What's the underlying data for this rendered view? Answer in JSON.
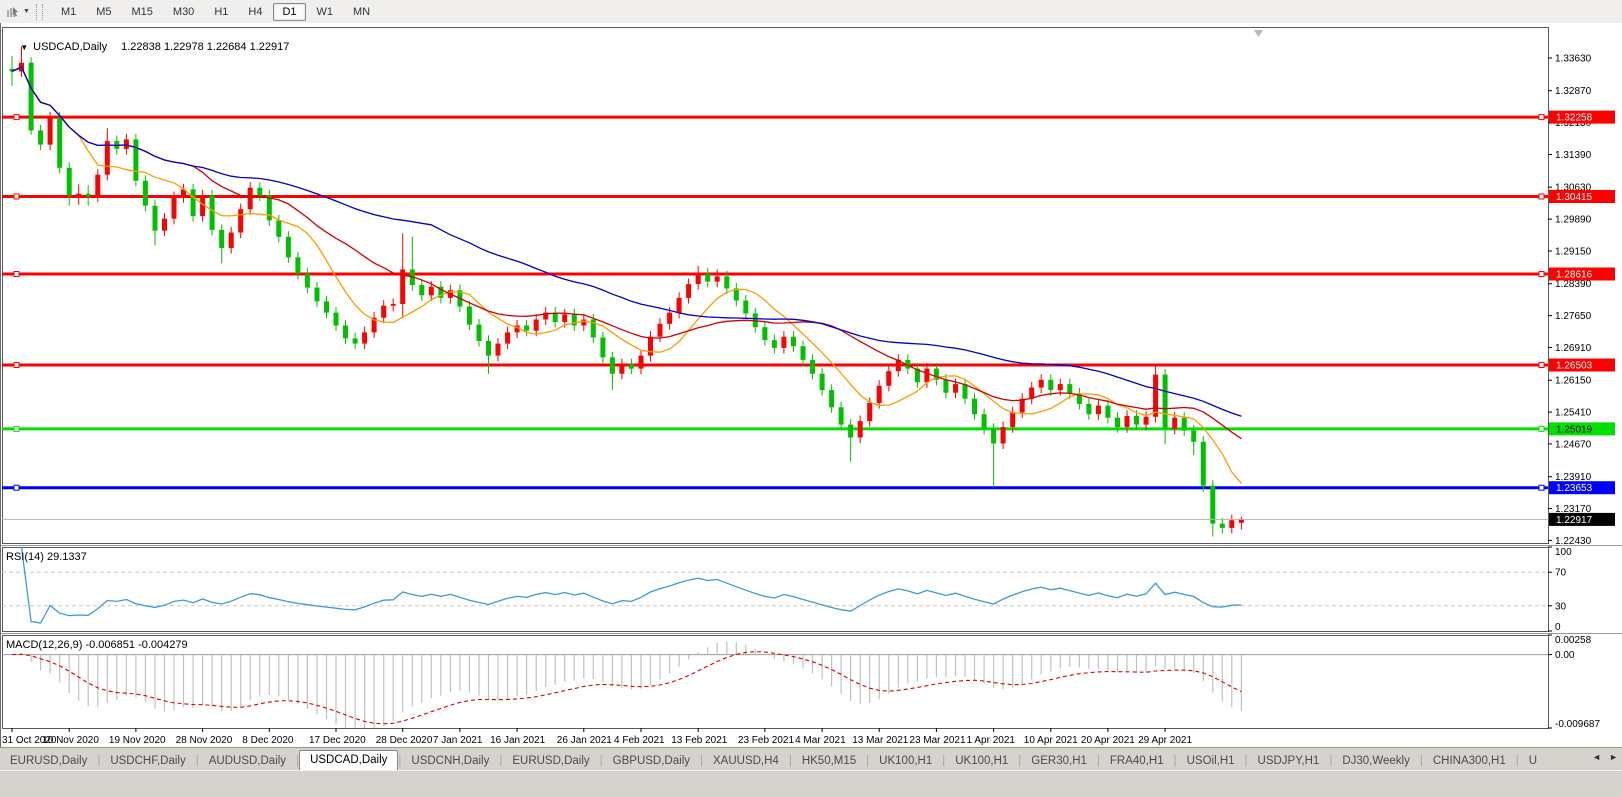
{
  "toolbar": {
    "tool_icon": "chart-cursor-icon",
    "dropdown_caret": "▼",
    "timeframes": [
      {
        "label": "M1",
        "active": false
      },
      {
        "label": "M5",
        "active": false
      },
      {
        "label": "M15",
        "active": false
      },
      {
        "label": "M30",
        "active": false
      },
      {
        "label": "H1",
        "active": false
      },
      {
        "label": "H4",
        "active": false
      },
      {
        "label": "D1",
        "active": true
      },
      {
        "label": "W1",
        "active": false
      },
      {
        "label": "MN",
        "active": false
      }
    ]
  },
  "chart_data": {
    "type": "candlestick",
    "title": {
      "caret_icon": "▼",
      "symbol": "USDCAD,Daily",
      "ohlc": "1.22838 1.22978 1.22684 1.22917"
    },
    "price_axis": {
      "max": 1.3435,
      "min": 1.2237,
      "ticks": [
        "1.33630",
        "1.32870",
        "1.32130",
        "1.31390",
        "1.30630",
        "1.29890",
        "1.29150",
        "1.28390",
        "1.27650",
        "1.26910",
        "1.26150",
        "1.25410",
        "1.24670",
        "1.23910",
        "1.23170",
        "1.22430"
      ]
    },
    "hlines": [
      {
        "price": 1.32258,
        "label": "1.32258",
        "color": "#FF0000",
        "text": "#FFFFFF",
        "width": 3
      },
      {
        "price": 1.30415,
        "label": "1.30415",
        "color": "#FF0000",
        "text": "#FFFFFF",
        "width": 3
      },
      {
        "price": 1.28616,
        "label": "1.28616",
        "color": "#FF0000",
        "text": "#FFFFFF",
        "width": 3
      },
      {
        "price": 1.26503,
        "label": "1.26503",
        "color": "#FF0000",
        "text": "#FFFFFF",
        "width": 3
      },
      {
        "price": 1.25019,
        "label": "1.25019",
        "color": "#00E000",
        "text": "#000000",
        "width": 3
      },
      {
        "price": 1.23653,
        "label": "1.23653",
        "color": "#0000FF",
        "text": "#FFFFFF",
        "width": 3
      }
    ],
    "current_price": {
      "value": 1.22917,
      "label": "1.22917",
      "line_color": "#b4b4b4",
      "tag_bg": "#000000",
      "tag_text": "#FFFFFF"
    },
    "colors": {
      "up": "#FF0000",
      "down": "#00C000",
      "background": "#FFFFFF",
      "frame": "#5a5a5a"
    },
    "ma_lines": [
      {
        "name": "fast-ma",
        "period": 8,
        "color": "#FF9C00"
      },
      {
        "name": "medium-ma",
        "period": 20,
        "color": "#D40000"
      },
      {
        "name": "slow-ma",
        "period": 45,
        "color": "#0000D0"
      }
    ],
    "date_axis": [
      {
        "text": "31 Oct 2020",
        "bar": 0
      },
      {
        "text": "10 Nov 2020",
        "bar": 6
      },
      {
        "text": "19 Nov 2020",
        "bar": 13
      },
      {
        "text": "28 Nov 2020",
        "bar": 20
      },
      {
        "text": "8 Dec 2020",
        "bar": 27
      },
      {
        "text": "17 Dec 2020",
        "bar": 34
      },
      {
        "text": "28 Dec 2020",
        "bar": 41
      },
      {
        "text": "7 Jan 2021",
        "bar": 47
      },
      {
        "text": "16 Jan 2021",
        "bar": 53
      },
      {
        "text": "26 Jan 2021",
        "bar": 60
      },
      {
        "text": "4 Feb 2021",
        "bar": 66
      },
      {
        "text": "13 Feb 2021",
        "bar": 72
      },
      {
        "text": "23 Feb 2021",
        "bar": 79
      },
      {
        "text": "4 Mar 2021",
        "bar": 85
      },
      {
        "text": "13 Mar 2021",
        "bar": 91
      },
      {
        "text": "23 Mar 2021",
        "bar": 97
      },
      {
        "text": "1 Apr 2021",
        "bar": 103
      },
      {
        "text": "10 Apr 2021",
        "bar": 109
      },
      {
        "text": "20 Apr 2021",
        "bar": 115
      },
      {
        "text": "29 Apr 2021",
        "bar": 121
      }
    ],
    "candles": [
      [
        1.3338,
        1.3368,
        1.3298,
        1.3332
      ],
      [
        1.3332,
        1.339,
        1.3319,
        1.3352
      ],
      [
        1.3352,
        1.3365,
        1.3185,
        1.3195
      ],
      [
        1.3195,
        1.3208,
        1.3149,
        1.3162
      ],
      [
        1.3162,
        1.3238,
        1.3149,
        1.3225
      ],
      [
        1.3225,
        1.3238,
        1.3095,
        1.3108
      ],
      [
        1.3108,
        1.3121,
        1.302,
        1.3044
      ],
      [
        1.3044,
        1.307,
        1.3022,
        1.3048
      ],
      [
        1.3048,
        1.3068,
        1.302,
        1.3042
      ],
      [
        1.3042,
        1.3105,
        1.3029,
        1.3092
      ],
      [
        1.3092,
        1.32,
        1.3079,
        1.317
      ],
      [
        1.317,
        1.3183,
        1.3139,
        1.3152
      ],
      [
        1.3152,
        1.3187,
        1.3139,
        1.3174
      ],
      [
        1.3174,
        1.3187,
        1.3065,
        1.3078
      ],
      [
        1.3078,
        1.3091,
        1.3007,
        1.302
      ],
      [
        1.302,
        1.3033,
        1.2928,
        1.2962
      ],
      [
        1.2962,
        1.3003,
        1.2949,
        1.299
      ],
      [
        1.299,
        1.3053,
        1.2977,
        1.304
      ],
      [
        1.304,
        1.3071,
        1.3027,
        1.3058
      ],
      [
        1.3058,
        1.3071,
        1.2983,
        1.2996
      ],
      [
        1.2996,
        1.3057,
        1.2983,
        1.3044
      ],
      [
        1.3044,
        1.3057,
        1.2951,
        1.2964
      ],
      [
        1.2964,
        1.2977,
        1.2886,
        1.2922
      ],
      [
        1.2922,
        1.2971,
        1.2909,
        1.2958
      ],
      [
        1.2958,
        1.3025,
        1.2945,
        1.3012
      ],
      [
        1.3012,
        1.3075,
        1.2999,
        1.3062
      ],
      [
        1.3062,
        1.3075,
        1.3031,
        1.3044
      ],
      [
        1.3044,
        1.3057,
        1.2973,
        1.2986
      ],
      [
        1.2986,
        1.2999,
        1.2935,
        1.2948
      ],
      [
        1.2948,
        1.2961,
        1.2887,
        1.29
      ],
      [
        1.29,
        1.2913,
        1.2849,
        1.2862
      ],
      [
        1.2862,
        1.2875,
        1.2817,
        1.283
      ],
      [
        1.283,
        1.2843,
        1.2785,
        1.2798
      ],
      [
        1.2798,
        1.2811,
        1.2759,
        1.2772
      ],
      [
        1.2772,
        1.2785,
        1.2729,
        1.2742
      ],
      [
        1.2742,
        1.2755,
        1.2699,
        1.2712
      ],
      [
        1.2712,
        1.2725,
        1.2687,
        1.27
      ],
      [
        1.27,
        1.2739,
        1.2687,
        1.2726
      ],
      [
        1.2726,
        1.2773,
        1.2713,
        1.276
      ],
      [
        1.276,
        1.2801,
        1.2747,
        1.2788
      ],
      [
        1.2788,
        1.2805,
        1.2775,
        1.2792
      ],
      [
        1.2792,
        1.2956,
        1.276,
        1.2872
      ],
      [
        1.2872,
        1.2948,
        1.2823,
        1.2836
      ],
      [
        1.2836,
        1.2849,
        1.2799,
        1.2812
      ],
      [
        1.2812,
        1.2845,
        1.2799,
        1.2832
      ],
      [
        1.2832,
        1.2845,
        1.2793,
        1.2806
      ],
      [
        1.2806,
        1.2837,
        1.2793,
        1.2824
      ],
      [
        1.2824,
        1.2837,
        1.2773,
        1.2786
      ],
      [
        1.2786,
        1.2799,
        1.2731,
        1.2744
      ],
      [
        1.2744,
        1.2757,
        1.2693,
        1.2706
      ],
      [
        1.2706,
        1.2719,
        1.263,
        1.2672
      ],
      [
        1.2672,
        1.2713,
        1.2659,
        1.27
      ],
      [
        1.27,
        1.2739,
        1.2687,
        1.2726
      ],
      [
        1.2726,
        1.2755,
        1.2713,
        1.2742
      ],
      [
        1.2742,
        1.2755,
        1.2717,
        1.273
      ],
      [
        1.273,
        1.2769,
        1.2717,
        1.2756
      ],
      [
        1.2756,
        1.2785,
        1.2743,
        1.2772
      ],
      [
        1.2772,
        1.2785,
        1.2737,
        1.275
      ],
      [
        1.275,
        1.2781,
        1.2737,
        1.2768
      ],
      [
        1.2768,
        1.2781,
        1.2729,
        1.2742
      ],
      [
        1.2742,
        1.2769,
        1.2729,
        1.2756
      ],
      [
        1.2756,
        1.2769,
        1.2701,
        1.2714
      ],
      [
        1.2714,
        1.2727,
        1.2655,
        1.2668
      ],
      [
        1.2668,
        1.2681,
        1.2592,
        1.263
      ],
      [
        1.263,
        1.2665,
        1.2617,
        1.2652
      ],
      [
        1.2652,
        1.2665,
        1.2629,
        1.2642
      ],
      [
        1.2642,
        1.2685,
        1.2629,
        1.2672
      ],
      [
        1.2672,
        1.2729,
        1.2659,
        1.2716
      ],
      [
        1.2716,
        1.2759,
        1.2703,
        1.2746
      ],
      [
        1.2746,
        1.2785,
        1.2733,
        1.2772
      ],
      [
        1.2772,
        1.2819,
        1.2759,
        1.2806
      ],
      [
        1.2806,
        1.2851,
        1.2793,
        1.2838
      ],
      [
        1.2838,
        1.288,
        1.2825,
        1.2862
      ],
      [
        1.2862,
        1.2875,
        1.2831,
        1.2844
      ],
      [
        1.2844,
        1.2872,
        1.2831,
        1.2856
      ],
      [
        1.2856,
        1.2869,
        1.2815,
        1.2828
      ],
      [
        1.2828,
        1.2841,
        1.2787,
        1.28
      ],
      [
        1.28,
        1.2813,
        1.2757,
        1.277
      ],
      [
        1.277,
        1.2783,
        1.2725,
        1.2738
      ],
      [
        1.2738,
        1.2751,
        1.2695,
        1.2708
      ],
      [
        1.2708,
        1.2721,
        1.2677,
        1.269
      ],
      [
        1.269,
        1.2729,
        1.2677,
        1.2716
      ],
      [
        1.2716,
        1.2729,
        1.2681,
        1.2694
      ],
      [
        1.2694,
        1.2707,
        1.2649,
        1.2662
      ],
      [
        1.2662,
        1.2675,
        1.2617,
        1.263
      ],
      [
        1.263,
        1.2643,
        1.2579,
        1.2592
      ],
      [
        1.2592,
        1.2605,
        1.2539,
        1.2552
      ],
      [
        1.2552,
        1.2565,
        1.2499,
        1.2512
      ],
      [
        1.2512,
        1.2525,
        1.2426,
        1.2482
      ],
      [
        1.2482,
        1.2533,
        1.2469,
        1.252
      ],
      [
        1.252,
        1.2575,
        1.2507,
        1.2562
      ],
      [
        1.2562,
        1.2615,
        1.2549,
        1.2602
      ],
      [
        1.2602,
        1.2649,
        1.2589,
        1.2636
      ],
      [
        1.2636,
        1.2675,
        1.2623,
        1.2662
      ],
      [
        1.2662,
        1.2675,
        1.2629,
        1.2642
      ],
      [
        1.2642,
        1.2655,
        1.2597,
        1.261
      ],
      [
        1.261,
        1.2655,
        1.2597,
        1.2642
      ],
      [
        1.2642,
        1.2655,
        1.2603,
        1.2616
      ],
      [
        1.2616,
        1.2629,
        1.2573,
        1.2586
      ],
      [
        1.2586,
        1.2619,
        1.2573,
        1.2606
      ],
      [
        1.2606,
        1.2619,
        1.2559,
        1.2572
      ],
      [
        1.2572,
        1.2585,
        1.2523,
        1.2536
      ],
      [
        1.2536,
        1.2549,
        1.2489,
        1.2502
      ],
      [
        1.2502,
        1.2515,
        1.2366,
        1.2468
      ],
      [
        1.2468,
        1.2519,
        1.2455,
        1.2506
      ],
      [
        1.2506,
        1.2553,
        1.2493,
        1.254
      ],
      [
        1.254,
        1.2585,
        1.2527,
        1.2572
      ],
      [
        1.2572,
        1.2611,
        1.2559,
        1.2598
      ],
      [
        1.2598,
        1.2629,
        1.2585,
        1.2616
      ],
      [
        1.2616,
        1.2629,
        1.2579,
        1.2592
      ],
      [
        1.2592,
        1.2619,
        1.2579,
        1.2606
      ],
      [
        1.2606,
        1.2619,
        1.2571,
        1.2584
      ],
      [
        1.2584,
        1.2597,
        1.2547,
        1.256
      ],
      [
        1.256,
        1.2573,
        1.2523,
        1.2536
      ],
      [
        1.2536,
        1.2569,
        1.2523,
        1.2556
      ],
      [
        1.2556,
        1.2569,
        1.2515,
        1.2528
      ],
      [
        1.2528,
        1.2541,
        1.2493,
        1.2506
      ],
      [
        1.2506,
        1.2545,
        1.2493,
        1.2532
      ],
      [
        1.2532,
        1.2545,
        1.2499,
        1.2512
      ],
      [
        1.2512,
        1.2543,
        1.2499,
        1.253
      ],
      [
        1.253,
        1.265,
        1.2517,
        1.2628
      ],
      [
        1.2628,
        1.2641,
        1.2466,
        1.2502
      ],
      [
        1.2502,
        1.2541,
        1.2489,
        1.2528
      ],
      [
        1.2528,
        1.2541,
        1.2485,
        1.2498
      ],
      [
        1.2498,
        1.2511,
        1.2441,
        1.2472
      ],
      [
        1.2472,
        1.2485,
        1.2356,
        1.237
      ],
      [
        1.237,
        1.2383,
        1.2252,
        1.2282
      ],
      [
        1.2282,
        1.2295,
        1.2259,
        1.2272
      ],
      [
        1.2272,
        1.2303,
        1.2259,
        1.229
      ],
      [
        1.22838,
        1.22978,
        1.22684,
        1.22917
      ]
    ],
    "shift_marker": "chart-shift-triangle"
  },
  "rsi": {
    "label": "RSI(14) 29.1337",
    "period": 14,
    "last_value": 29.1337,
    "levels": [
      70,
      30
    ],
    "axis_ticks": [
      "100",
      "70",
      "30",
      "0"
    ],
    "range": [
      0,
      100
    ],
    "line_color": "#3E9ADE"
  },
  "macd": {
    "label": "MACD(12,26,9) -0.006851 -0.004279",
    "fast": 12,
    "slow": 26,
    "signal": 9,
    "last_main": -0.006851,
    "last_signal": -0.004279,
    "axis_ticks": {
      "top": "0.00258",
      "zero": "0.00",
      "bottom": "-0.009687"
    },
    "range": [
      -0.009687,
      0.00258
    ],
    "histogram_color": "#c0c0c0",
    "signal_color": "#E00000"
  },
  "tabs": {
    "items": [
      {
        "label": "EURUSD,Daily",
        "active": false
      },
      {
        "label": "USDCHF,Daily",
        "active": false
      },
      {
        "label": "AUDUSD,Daily",
        "active": false
      },
      {
        "label": "USDCAD,Daily",
        "active": true
      },
      {
        "label": "USDCNH,Daily",
        "active": false
      },
      {
        "label": "EURUSD,Daily",
        "active": false
      },
      {
        "label": "GBPUSD,Daily",
        "active": false
      },
      {
        "label": "XAUUSD,H4",
        "active": false
      },
      {
        "label": "HK50,M15",
        "active": false
      },
      {
        "label": "UK100,H1",
        "active": false
      },
      {
        "label": "UK100,H1",
        "active": false
      },
      {
        "label": "GER30,H1",
        "active": false
      },
      {
        "label": "FRA40,H1",
        "active": false
      },
      {
        "label": "USOil,H1",
        "active": false
      },
      {
        "label": "USDJPY,H1",
        "active": false
      },
      {
        "label": "DJ30,Weekly",
        "active": false
      },
      {
        "label": "CHINA300,H1",
        "active": false
      },
      {
        "label": "U",
        "active": false
      }
    ],
    "scroll_left_icon": "◄",
    "scroll_right_icon": "►"
  }
}
